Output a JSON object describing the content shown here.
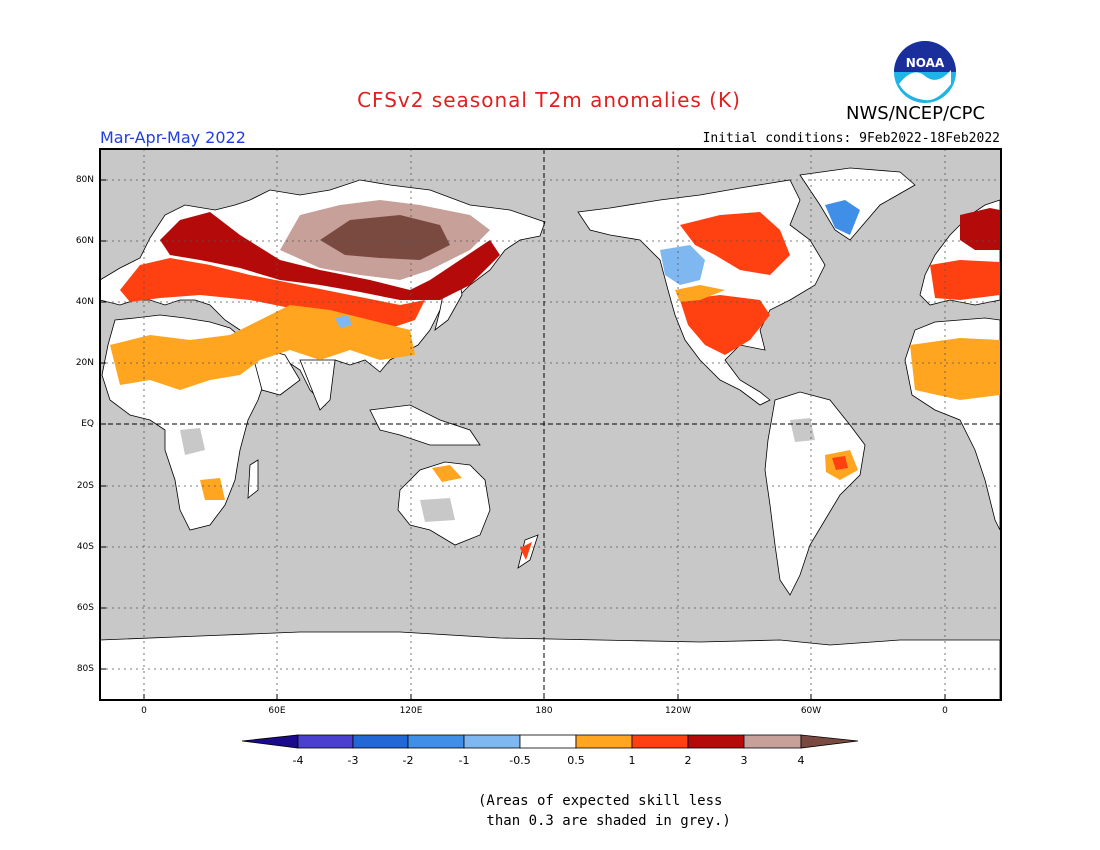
{
  "title": "CFSv2 seasonal T2m anomalies (K)",
  "agency": "NWS/NCEP/CPC",
  "logo_text": "NOAA",
  "season": "Mar-Apr-May 2022",
  "initial_conditions": "Initial conditions: 9Feb2022-18Feb2022",
  "lat_labels": [
    "80N",
    "60N",
    "40N",
    "20N",
    "EQ",
    "20S",
    "40S",
    "60S",
    "80S"
  ],
  "lon_labels": [
    "0",
    "60E",
    "120E",
    "180",
    "120W",
    "60W",
    "0"
  ],
  "colorbar": {
    "labels": [
      "-4",
      "-3",
      "-2",
      "-1",
      "-0.5",
      "0.5",
      "1",
      "2",
      "3",
      "4"
    ],
    "colors": [
      "#1a0a8c",
      "#4a3fcf",
      "#2167d6",
      "#3f8ee8",
      "#7fb8f0",
      "#ffffff",
      "#ffa51f",
      "#ff4010",
      "#b40a0a",
      "#c8a09a",
      "#7a4a40"
    ]
  },
  "note_line1": "(Areas of expected skill less",
  "note_line2": " than 0.3 are shaded in grey.)",
  "colors": {
    "title": "#e02020",
    "season": "#1f3fe0",
    "ocean": "#c8c8c8",
    "land_skill": "#ffffff"
  }
}
